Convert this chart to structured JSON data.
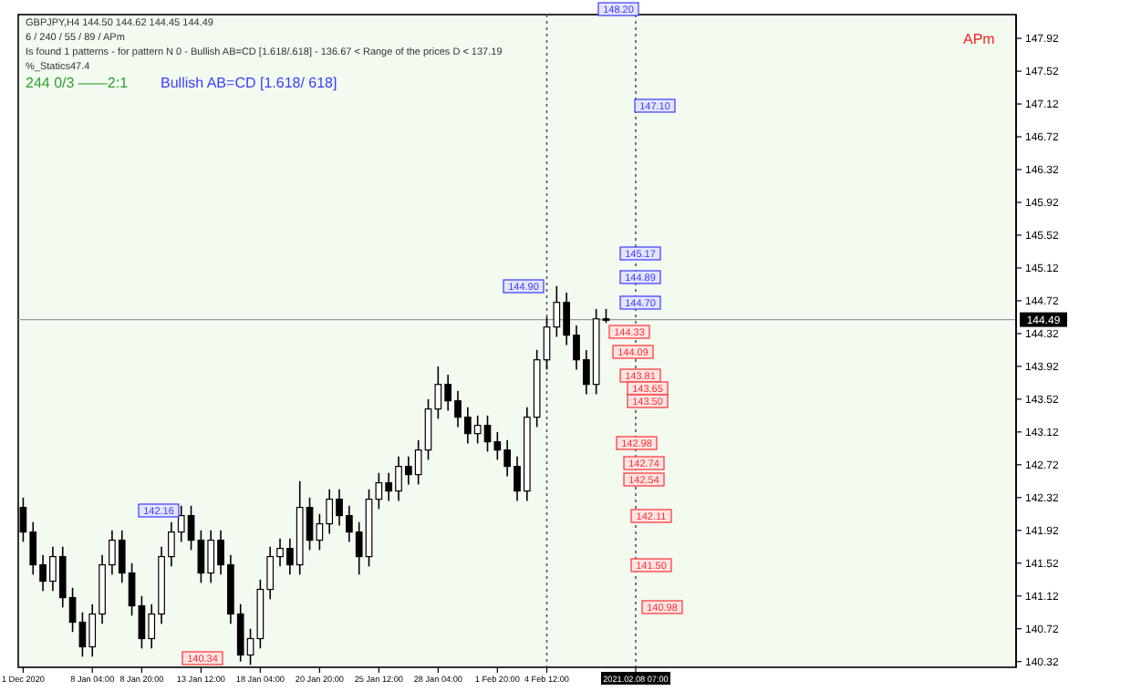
{
  "chart_data": {
    "type": "candlestick",
    "color": "#000000",
    "categories": [
      "1 Dec 2020",
      null,
      null,
      null,
      null,
      null,
      null,
      "8 Jan 04:00",
      null,
      null,
      null,
      null,
      "8 Jan 20:00",
      null,
      null,
      null,
      null,
      null,
      "13 Jan 12:00",
      null,
      null,
      null,
      null,
      null,
      "18 Jan 04:00",
      null,
      null,
      null,
      null,
      null,
      "20 Jan 20:00",
      null,
      null,
      null,
      null,
      null,
      "25 Jan 12:00",
      null,
      null,
      null,
      null,
      null,
      "28 Jan 04:00",
      null,
      null,
      null,
      null,
      null,
      "1 Feb 20:00",
      null,
      null,
      null,
      null,
      "4 Feb 12:00",
      null,
      null,
      null,
      null,
      null,
      null,
      null,
      null,
      "2021.02.08 07:00",
      null,
      null,
      null,
      null,
      null,
      null,
      null,
      null,
      null,
      null,
      null,
      null,
      null,
      null,
      null,
      null,
      null,
      null,
      null,
      null,
      null,
      null,
      null,
      null,
      null,
      null,
      null,
      null,
      null,
      null,
      null,
      null,
      null,
      null,
      null,
      null,
      null,
      null
    ],
    "ohlc": [
      [
        142.2,
        142.32,
        141.78,
        141.9
      ],
      [
        141.9,
        142.02,
        141.38,
        141.5
      ],
      [
        141.5,
        141.62,
        141.18,
        141.3
      ],
      [
        141.3,
        141.72,
        141.18,
        141.6
      ],
      [
        141.6,
        141.72,
        140.98,
        141.1
      ],
      [
        141.1,
        141.22,
        140.68,
        140.8
      ],
      [
        140.8,
        140.92,
        140.38,
        140.5
      ],
      [
        140.5,
        141.02,
        140.38,
        140.9
      ],
      [
        140.9,
        141.62,
        140.78,
        141.5
      ],
      [
        141.5,
        141.92,
        141.38,
        141.8
      ],
      [
        141.8,
        141.92,
        141.28,
        141.4
      ],
      [
        141.4,
        141.52,
        140.88,
        141.0
      ],
      [
        141.0,
        141.12,
        140.48,
        140.6
      ],
      [
        140.6,
        141.02,
        140.48,
        140.9
      ],
      [
        140.9,
        141.72,
        140.78,
        141.6
      ],
      [
        141.6,
        142.02,
        141.48,
        141.9
      ],
      [
        141.9,
        142.22,
        141.78,
        142.1
      ],
      [
        142.1,
        142.22,
        141.68,
        141.8
      ],
      [
        141.8,
        141.92,
        141.28,
        141.4
      ],
      [
        141.4,
        141.92,
        141.28,
        141.8
      ],
      [
        141.8,
        141.92,
        141.38,
        141.5
      ],
      [
        141.5,
        141.62,
        140.78,
        140.9
      ],
      [
        140.9,
        141.02,
        140.32,
        140.4
      ],
      [
        140.4,
        140.72,
        140.28,
        140.6
      ],
      [
        140.6,
        141.32,
        140.48,
        141.2
      ],
      [
        141.2,
        141.72,
        141.08,
        141.6
      ],
      [
        141.6,
        141.82,
        141.48,
        141.7
      ],
      [
        141.7,
        141.82,
        141.38,
        141.5
      ],
      [
        141.5,
        142.52,
        141.38,
        142.2
      ],
      [
        142.2,
        142.32,
        141.68,
        141.8
      ],
      [
        141.8,
        142.12,
        141.68,
        142.0
      ],
      [
        142.0,
        142.42,
        141.88,
        142.3
      ],
      [
        142.3,
        142.42,
        141.98,
        142.1
      ],
      [
        142.1,
        142.22,
        141.78,
        141.9
      ],
      [
        141.9,
        142.02,
        141.38,
        141.6
      ],
      [
        141.6,
        142.42,
        141.48,
        142.3
      ],
      [
        142.3,
        142.62,
        142.18,
        142.5
      ],
      [
        142.5,
        142.62,
        142.28,
        142.4
      ],
      [
        142.4,
        142.82,
        142.28,
        142.7
      ],
      [
        142.7,
        142.82,
        142.48,
        142.6
      ],
      [
        142.6,
        143.02,
        142.48,
        142.9
      ],
      [
        142.9,
        143.52,
        142.78,
        143.4
      ],
      [
        143.4,
        143.92,
        143.28,
        143.7
      ],
      [
        143.7,
        143.82,
        143.38,
        143.5
      ],
      [
        143.5,
        143.62,
        143.18,
        143.3
      ],
      [
        143.3,
        143.42,
        142.98,
        143.1
      ],
      [
        143.1,
        143.32,
        142.98,
        143.2
      ],
      [
        143.2,
        143.32,
        142.88,
        143.0
      ],
      [
        143.0,
        143.12,
        142.78,
        142.9
      ],
      [
        142.9,
        143.02,
        142.58,
        142.7
      ],
      [
        142.7,
        142.82,
        142.28,
        142.4
      ],
      [
        142.4,
        143.42,
        142.28,
        143.3
      ],
      [
        143.3,
        144.12,
        143.18,
        144.0
      ],
      [
        144.0,
        144.52,
        143.88,
        144.4
      ],
      [
        144.4,
        144.9,
        144.28,
        144.7
      ],
      [
        144.7,
        144.82,
        144.18,
        144.3
      ],
      [
        144.3,
        144.42,
        143.88,
        144.0
      ],
      [
        144.0,
        144.12,
        143.58,
        143.7
      ],
      [
        143.7,
        144.62,
        143.58,
        144.5
      ],
      [
        144.5,
        144.62,
        144.45,
        144.49
      ],
      null,
      null,
      null,
      null,
      null,
      null,
      null,
      null,
      null,
      null,
      null,
      null,
      null,
      null,
      null,
      null,
      null,
      null,
      null,
      null,
      null,
      null,
      null,
      null,
      null,
      null,
      null,
      null,
      null,
      null,
      null,
      null,
      null,
      null,
      null,
      null,
      null,
      null,
      null,
      null,
      null
    ],
    "ylim": [
      140.25,
      148.21
    ],
    "yticks": [
      140.32,
      140.72,
      141.12,
      141.52,
      141.92,
      142.32,
      142.72,
      143.12,
      143.52,
      143.92,
      144.32,
      144.72,
      145.12,
      145.52,
      145.92,
      146.32,
      146.72,
      147.12,
      147.52,
      147.92
    ],
    "ref_lines": [
      {
        "axis": "y",
        "value": 144.49,
        "label": "144.49",
        "color": "#9a9a9a",
        "line_style": "solid"
      },
      {
        "axis": "x",
        "value": "4 Feb 12:00",
        "color": "#555555",
        "line_style": "dotted"
      },
      {
        "axis": "x",
        "value": "2021.02.08 07:00",
        "color": "#555555",
        "line_style": "dotted"
      }
    ],
    "annotations": [
      "GBPJPY,H4  144.50 144.62 144.45 144.49",
      "6 / 240 / 55 / 89 / APm",
      "Is found 1 patterns  -  for pattern N 0 - Bullish AB=CD [1.618/.618] - 136.67 < Range of the prices D < 137.19",
      "%_Statics47.4",
      "244     0/3      ——2:1",
      "Bullish AB=CD [1.618/ 618]",
      "APm",
      "142.16",
      "140.34",
      "144.90",
      "148.20",
      "147.10",
      "145.17",
      "144.89",
      "144.70",
      "144.33",
      "144.09",
      "143.81",
      "143.65",
      "143.50",
      "142.98",
      "142.74",
      "142.54",
      "142.11",
      "141.50",
      "140.98"
    ]
  }
}
